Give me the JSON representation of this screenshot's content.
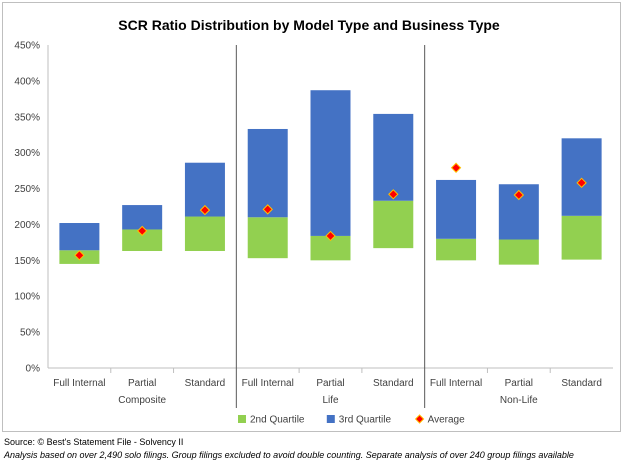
{
  "chart_data": {
    "type": "bar",
    "title": "SCR Ratio Distribution by Model Type and Business Type",
    "ylim": [
      0,
      450
    ],
    "yticks": [
      0,
      50,
      100,
      150,
      200,
      250,
      300,
      350,
      400,
      450
    ],
    "ytick_labels": [
      "0%",
      "50%",
      "100%",
      "150%",
      "200%",
      "250%",
      "300%",
      "350%",
      "400%",
      "450%"
    ],
    "grid": false,
    "legend_position": "bottom",
    "groups": [
      {
        "label": "Composite",
        "categories": [
          "Full Internal",
          "Partial",
          "Standard"
        ]
      },
      {
        "label": "Life",
        "categories": [
          "Full Internal",
          "Partial",
          "Standard"
        ]
      },
      {
        "label": "Non-Life",
        "categories": [
          "Full Internal",
          "Partial",
          "Standard"
        ]
      }
    ],
    "series": [
      {
        "name": "2nd Quartile",
        "color": "#92d050",
        "values_low": [
          145,
          163,
          163,
          153,
          150,
          167,
          150,
          144,
          151
        ],
        "values_high": [
          164,
          193,
          211,
          210,
          184,
          233,
          180,
          179,
          212
        ]
      },
      {
        "name": "3rd Quartile",
        "color": "#4472c4",
        "values_low": [
          164,
          193,
          211,
          210,
          184,
          233,
          180,
          179,
          212
        ],
        "values_high": [
          202,
          227,
          286,
          333,
          387,
          354,
          262,
          256,
          320
        ]
      },
      {
        "name": "Average",
        "color": "#ff0000",
        "marker": "diamond",
        "values": [
          157,
          191,
          220,
          221,
          184,
          242,
          279,
          241,
          258
        ]
      }
    ]
  },
  "footer": {
    "source": "Source: © Best's Statement File - Solvency II",
    "analysis": "Analysis based on over 2,490 solo filings. Group filings excluded to avoid double counting. Separate analysis of over 240 group filings available"
  }
}
